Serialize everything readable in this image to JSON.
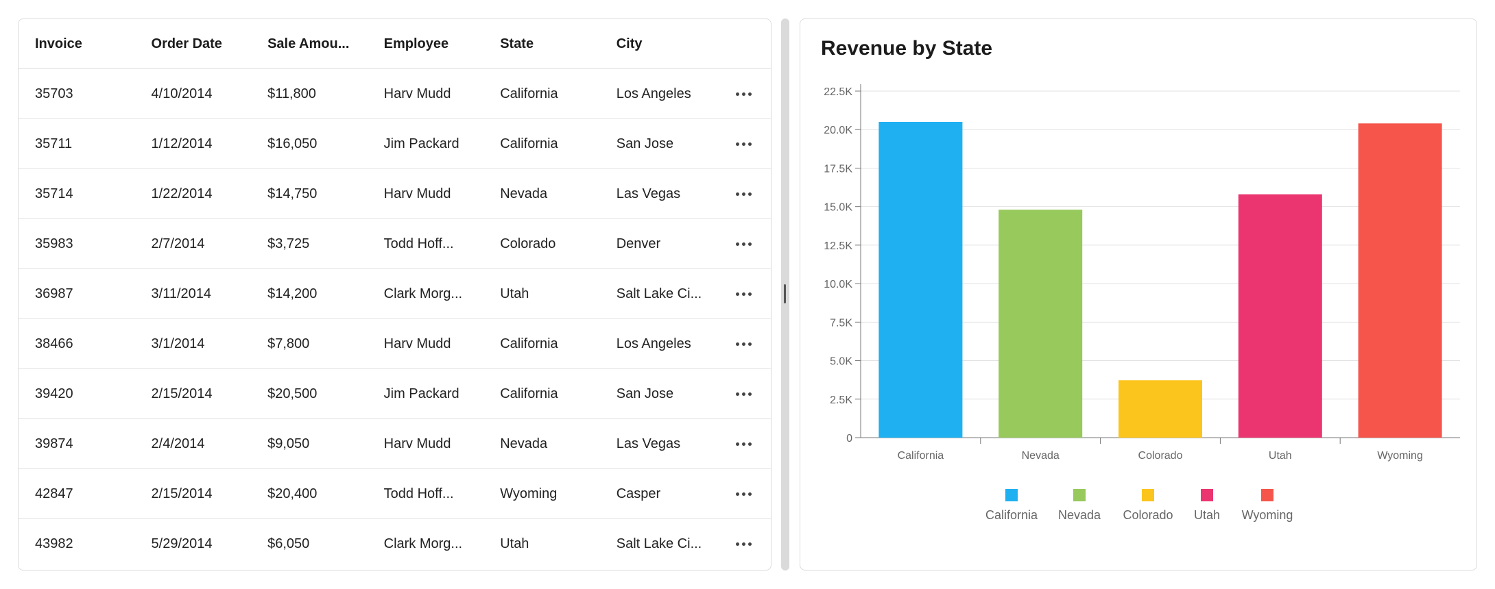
{
  "grid": {
    "columns": [
      "Invoice",
      "Order Date",
      "Sale Amou...",
      "Employee",
      "State",
      "City"
    ],
    "rows": [
      [
        "35703",
        "4/10/2014",
        "$11,800",
        "Harv Mudd",
        "California",
        "Los Angeles"
      ],
      [
        "35711",
        "1/12/2014",
        "$16,050",
        "Jim Packard",
        "California",
        "San Jose"
      ],
      [
        "35714",
        "1/22/2014",
        "$14,750",
        "Harv Mudd",
        "Nevada",
        "Las Vegas"
      ],
      [
        "35983",
        "2/7/2014",
        "$3,725",
        "Todd Hoff...",
        "Colorado",
        "Denver"
      ],
      [
        "36987",
        "3/11/2014",
        "$14,200",
        "Clark Morg...",
        "Utah",
        "Salt Lake Ci..."
      ],
      [
        "38466",
        "3/1/2014",
        "$7,800",
        "Harv Mudd",
        "California",
        "Los Angeles"
      ],
      [
        "39420",
        "2/15/2014",
        "$20,500",
        "Jim Packard",
        "California",
        "San Jose"
      ],
      [
        "39874",
        "2/4/2014",
        "$9,050",
        "Harv Mudd",
        "Nevada",
        "Las Vegas"
      ],
      [
        "42847",
        "2/15/2014",
        "$20,400",
        "Todd Hoff...",
        "Wyoming",
        "Casper"
      ],
      [
        "43982",
        "5/29/2014",
        "$6,050",
        "Clark Morg...",
        "Utah",
        "Salt Lake Ci..."
      ]
    ]
  },
  "chart_data": {
    "type": "bar",
    "title": "Revenue by State",
    "categories": [
      "California",
      "Nevada",
      "Colorado",
      "Utah",
      "Wyoming"
    ],
    "values": [
      20500,
      14800,
      3725,
      15800,
      20400
    ],
    "colors": [
      "#1fb0f2",
      "#97c95c",
      "#fcc51d",
      "#eb3570",
      "#f5554a"
    ],
    "ylim": [
      0,
      22500
    ],
    "yticks": [
      0,
      2500,
      5000,
      7500,
      10000,
      12500,
      15000,
      17500,
      20000,
      22500
    ],
    "ytick_labels": [
      "0",
      "2.5K",
      "5.0K",
      "7.5K",
      "10.0K",
      "12.5K",
      "15.0K",
      "17.5K",
      "20.0K",
      "22.5K"
    ],
    "grid": true,
    "legend": "bottom"
  }
}
